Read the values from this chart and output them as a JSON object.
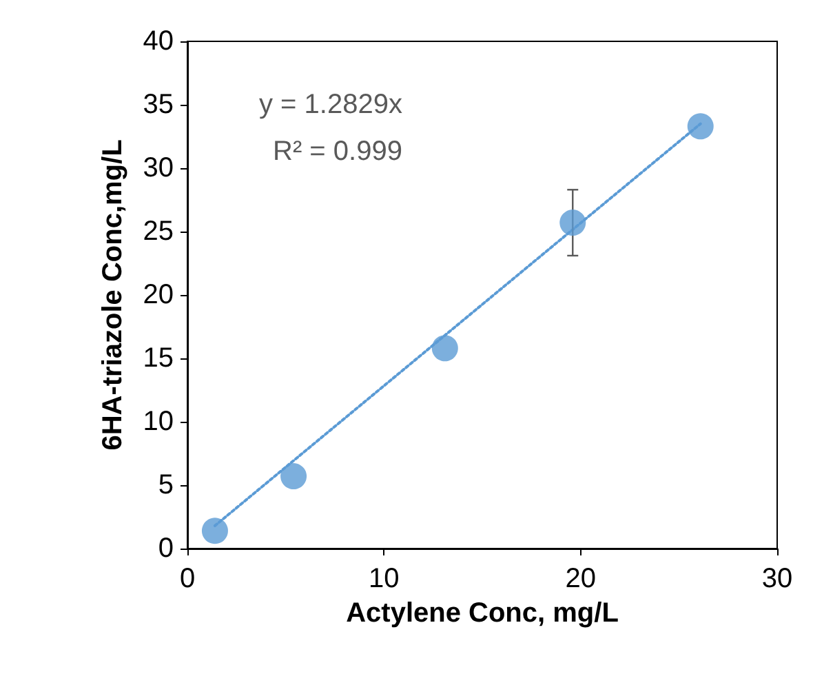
{
  "chart_data": {
    "type": "scatter",
    "xlabel": "Actylene Conc, mg/L",
    "ylabel": "6HA-triazole Conc,mg/L",
    "annotations": [
      "y = 1.2829x",
      "R² = 0.999"
    ],
    "xlim": [
      0,
      30
    ],
    "xticks": [
      0,
      10,
      20,
      30
    ],
    "ylim": [
      0,
      40
    ],
    "yticks": [
      0,
      5,
      10,
      15,
      20,
      25,
      30,
      35,
      40
    ],
    "grid": false,
    "marker": "circle",
    "series": [
      {
        "color": "#5b9bd5",
        "x": [
          1.4,
          5.4,
          13.1,
          19.6,
          26.1
        ],
        "values": [
          1.4,
          5.7,
          15.8,
          25.7,
          33.3
        ],
        "errors": [
          null,
          null,
          null,
          2.6,
          null
        ]
      },
      {
        "type": "line",
        "color": "#5b9bd5",
        "line_style": "dotted",
        "marker": "none",
        "x": [
          1.4,
          26.1
        ],
        "values": [
          1.8,
          33.5
        ]
      }
    ]
  }
}
